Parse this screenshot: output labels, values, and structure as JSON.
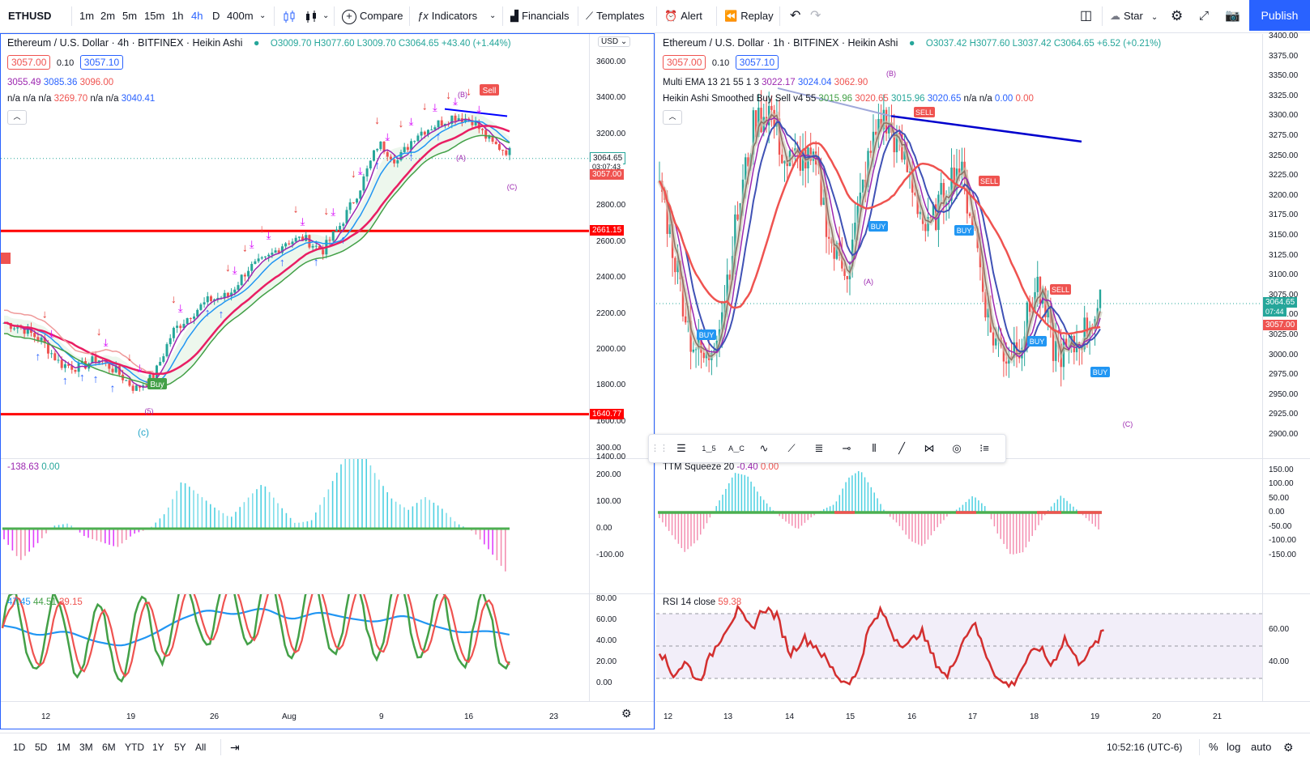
{
  "toolbar": {
    "symbol": "ETHUSD",
    "timeframes": [
      "1m",
      "2m",
      "5m",
      "15m",
      "1h",
      "4h",
      "D",
      "400m"
    ],
    "active_timeframe": "4h",
    "compare": "Compare",
    "indicators": "Indicators",
    "financials": "Financials",
    "templates": "Templates",
    "alert": "Alert",
    "replay": "Replay",
    "star": "Star",
    "publish": "Publish"
  },
  "left": {
    "title": "Ethereum / U.S. Dollar · 4h · BITFINEX · Heikin Ashi",
    "ohlc": "O3009.70 H3077.60 L3009.70 C3064.65 +43.40 (+1.44%)",
    "bid": "3057.00",
    "spread": "0.10",
    "ask": "3057.10",
    "ind1": [
      "3055.49",
      "3085.36",
      "3096.00"
    ],
    "ind2": "n/a n/a n/a",
    "ind2_v1": "3269.70",
    "ind2_mid": "n/a n/a",
    "ind2_v2": "3040.41",
    "currency": "USD",
    "price_ticks": [
      "3600.00",
      "3400.00",
      "3200.00",
      "2800.00",
      "2600.00",
      "2400.00",
      "2200.00",
      "2000.00",
      "1800.00",
      "1600.00",
      "1400.00"
    ],
    "last_price": "3064.65",
    "countdown": "03:07:43",
    "bid_tag": "3057.00",
    "level_high": "2661.15",
    "level_low": "1640.77",
    "annotations": {
      "B": "(B)",
      "A": "(A)",
      "C_small": "(C)",
      "five": "(5)",
      "C_big": "(c)",
      "sell": "Sell",
      "buy": "Buy"
    },
    "osc_legend": [
      "-138.63",
      "0.00"
    ],
    "osc_ticks": [
      "300.00",
      "200.00",
      "100.00",
      "0.00",
      "-100.00"
    ],
    "rsi_legend": [
      "47.45",
      "44.51",
      "39.15"
    ],
    "rsi_ticks": [
      "80.00",
      "60.00",
      "40.00",
      "20.00",
      "0.00"
    ],
    "time_ticks": [
      "12",
      "19",
      "26",
      "Aug",
      "9",
      "16",
      "23"
    ]
  },
  "right": {
    "title": "Ethereum / U.S. Dollar · 1h · BITFINEX · Heikin Ashi",
    "ohlc": "O3037.42 H3077.60 L3037.42 C3064.65 +6.52 (+0.21%)",
    "bid": "3057.00",
    "spread": "0.10",
    "ask": "3057.10",
    "ema_name": "Multi EMA 13 21 55 1 3",
    "ema_vals": [
      "3022.17",
      "3024.04",
      "3062.90"
    ],
    "has_name": "Heikin Ashi Smoothed Buy Sell v4 55",
    "has_vals": [
      "3015.96",
      "3020.65",
      "3015.96",
      "3020.65"
    ],
    "has_na": "n/a n/a",
    "has_tail": [
      "0.00",
      "0.00"
    ],
    "price_ticks": [
      "3400.00",
      "3375.00",
      "3350.00",
      "3325.00",
      "3300.00",
      "3275.00",
      "3250.00",
      "3225.00",
      "3200.00",
      "3175.00",
      "3150.00",
      "3125.00",
      "3100.00",
      "3075.00",
      "3050.00",
      "3025.00",
      "3000.00",
      "2975.00",
      "2950.00",
      "2925.00",
      "2900.00"
    ],
    "last_price": "3064.65",
    "countdown": "07:44",
    "bid_tag": "3057.00",
    "annotations": {
      "B": "(B)",
      "A": "(A)",
      "C": "(C)",
      "sell": "SELL",
      "buy": "BUY"
    },
    "ttm_name": "TTM Squeeze 20",
    "ttm_vals": [
      "-0.40",
      "0.00"
    ],
    "ttm_ticks": [
      "150.00",
      "100.00",
      "50.00",
      "0.00",
      "-50.00",
      "-100.00",
      "-150.00"
    ],
    "rsi_name": "RSI 14 close",
    "rsi_val": "59.38",
    "rsi_ticks": [
      "60.00",
      "40.00"
    ],
    "time_ticks": [
      "12",
      "13",
      "14",
      "15",
      "16",
      "17",
      "18",
      "19",
      "20",
      "21"
    ]
  },
  "bottom": {
    "ranges": [
      "1D",
      "5D",
      "1M",
      "3M",
      "6M",
      "YTD",
      "1Y",
      "5Y",
      "All"
    ],
    "clock": "10:52:16 (UTC-6)",
    "percent": "%",
    "log": "log",
    "auto": "auto"
  },
  "colors": {
    "accent": "#2962ff",
    "up": "#26a69a",
    "down": "#ef5350",
    "level": "#ff0000",
    "magenta": "#e040fb"
  }
}
